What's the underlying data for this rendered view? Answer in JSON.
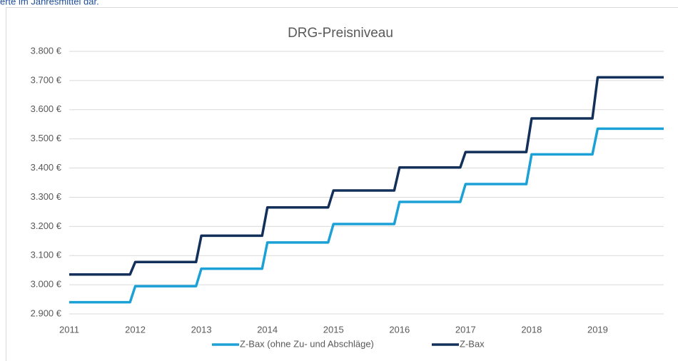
{
  "caption": "erte im Jahresmittel dar.",
  "chart_data": {
    "type": "line",
    "title": "DRG-Preisniveau",
    "x": [
      2011,
      2011.92,
      2012,
      2012.92,
      2013,
      2013.92,
      2014,
      2014.92,
      2015,
      2015.92,
      2016,
      2016.92,
      2017,
      2017.92,
      2018,
      2018.92,
      2019,
      2020
    ],
    "series": [
      {
        "name": "Z-Bax (ohne Zu- und Abschläge)",
        "color": "#1ba1d6",
        "values": [
          2940,
          2940,
          2995,
          2995,
          3055,
          3055,
          3145,
          3145,
          3208,
          3208,
          3284,
          3284,
          3345,
          3345,
          3447,
          3447,
          3535,
          3535
        ]
      },
      {
        "name": "Z-Bax",
        "color": "#13305a",
        "values": [
          3035,
          3035,
          3078,
          3078,
          3168,
          3168,
          3265,
          3265,
          3323,
          3323,
          3402,
          3402,
          3455,
          3455,
          3570,
          3570,
          3711,
          3711
        ]
      }
    ],
    "xlim": [
      2011,
      2020
    ],
    "xticks": [
      2011,
      2012,
      2013,
      2014,
      2015,
      2016,
      2017,
      2018,
      2019
    ],
    "ylim": [
      2900,
      3800
    ],
    "yticks": [
      {
        "value": 2900,
        "label": "2.900 €"
      },
      {
        "value": 3000,
        "label": "3.000 €"
      },
      {
        "value": 3100,
        "label": "3.100 €"
      },
      {
        "value": 3200,
        "label": "3.200 €"
      },
      {
        "value": 3300,
        "label": "3.300 €"
      },
      {
        "value": 3400,
        "label": "3.400 €"
      },
      {
        "value": 3500,
        "label": "3.500 €"
      },
      {
        "value": 3600,
        "label": "3.600 €"
      },
      {
        "value": 3700,
        "label": "3.700 €"
      },
      {
        "value": 3800,
        "label": "3.800 €"
      }
    ],
    "grid": true,
    "legend": "bottom"
  }
}
